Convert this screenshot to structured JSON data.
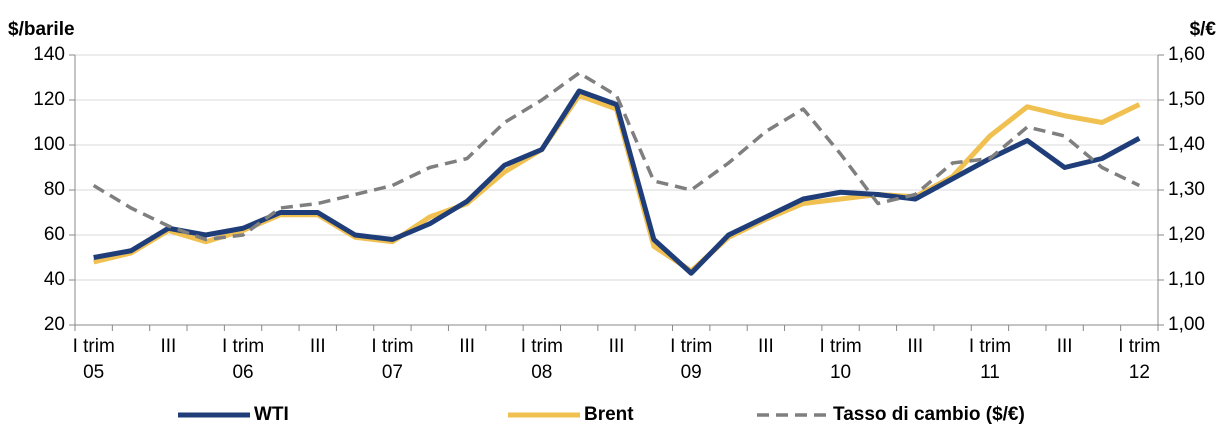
{
  "chart_data": {
    "type": "line",
    "ylabel": "$/barile",
    "y2label": "$/€",
    "categories": [
      "I trim\n05",
      null,
      "III",
      null,
      "I trim\n06",
      null,
      "III",
      null,
      "I trim\n07",
      null,
      "III",
      null,
      "I trim\n08",
      null,
      "III",
      null,
      "I trim\n09",
      null,
      "III",
      null,
      "I trim\n10",
      null,
      "III",
      null,
      "I trim\n11",
      null,
      "III",
      null,
      "I trim\n12"
    ],
    "series": [
      {
        "name": "WTI",
        "color": "#1f3e79",
        "values": [
          50,
          53,
          63,
          60,
          63,
          70,
          70,
          60,
          58,
          65,
          75,
          91,
          98,
          124,
          118,
          58,
          43,
          60,
          68,
          76,
          79,
          78,
          76,
          85,
          94,
          102,
          90,
          94,
          103
        ]
      },
      {
        "name": "Brent",
        "color": "#f0c050",
        "values": [
          48,
          52,
          62,
          57,
          62,
          69,
          69,
          59,
          57,
          68,
          74,
          88,
          98,
          122,
          116,
          55,
          44,
          59,
          67,
          74,
          76,
          78,
          77,
          86,
          104,
          117,
          113,
          110,
          118
        ]
      },
      {
        "name": "Tasso di cambio ($/€)",
        "color": "#7f7f7f",
        "dashed": true,
        "axis": "y2",
        "values": [
          1.31,
          1.26,
          1.22,
          1.19,
          1.2,
          1.26,
          1.27,
          1.29,
          1.31,
          1.35,
          1.37,
          1.45,
          1.5,
          1.56,
          1.51,
          1.32,
          1.3,
          1.36,
          1.43,
          1.48,
          1.38,
          1.27,
          1.29,
          1.36,
          1.37,
          1.44,
          1.42,
          1.35,
          1.31
        ]
      }
    ],
    "ylim": [
      20,
      140
    ],
    "yticks": [
      20,
      40,
      60,
      80,
      100,
      120,
      140
    ],
    "y2lim": [
      1.0,
      1.6
    ],
    "y2ticks": [
      {
        "value": 1.0,
        "label": "1,00"
      },
      {
        "value": 1.1,
        "label": "1,10"
      },
      {
        "value": 1.2,
        "label": "1,20"
      },
      {
        "value": 1.3,
        "label": "1,30"
      },
      {
        "value": 1.4,
        "label": "1,40"
      },
      {
        "value": 1.5,
        "label": "1,50"
      },
      {
        "value": 1.6,
        "label": "1,60"
      }
    ],
    "grid": true,
    "legend": "bottom"
  }
}
